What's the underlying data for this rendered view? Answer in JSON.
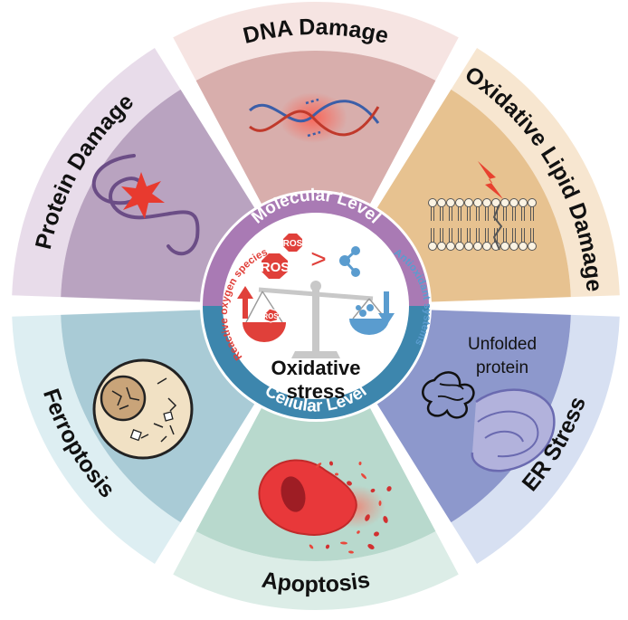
{
  "diagram": {
    "segments": [
      {
        "id": "dna-damage",
        "label": "DNA Damage",
        "colors": {
          "outer": "#f6e4e2",
          "inner": "#d8aeac"
        }
      },
      {
        "id": "oxidative-lipid-damage",
        "label": "Oxidative Lipid Damage",
        "colors": {
          "outer": "#f7e6d0",
          "inner": "#e7c290"
        }
      },
      {
        "id": "er-stress",
        "label": "ER Stress",
        "colors": {
          "outer": "#d7e0f2",
          "inner": "#8d98cc"
        }
      },
      {
        "id": "apoptosis",
        "label": "Apoptosis",
        "colors": {
          "outer": "#dcede7",
          "inner": "#b8d9cd"
        }
      },
      {
        "id": "ferroptosis",
        "label": "Ferroptosis",
        "colors": {
          "outer": "#ddeef2",
          "inner": "#a9cbd6"
        }
      },
      {
        "id": "protein-damage",
        "label": "Protein Damage",
        "colors": {
          "outer": "#e8dcea",
          "inner": "#b9a3c0"
        }
      }
    ],
    "center": {
      "molecular_level": "Molecular Level",
      "cellular_level": "Cellular Level",
      "reactive_oxygen_species": "Reactive oxygen species",
      "antioxidant_systems": "Antioxidant systems",
      "ros_label": "ROS",
      "comparison": ">",
      "title_line1": "Oxidative",
      "title_line2": "stress"
    },
    "er_stress_annotation": {
      "line1": "Unfolded",
      "line2": "protein"
    },
    "colors": {
      "molecular_ring": "#a97ab4",
      "cellular_ring": "#3d86ad",
      "ros_red": "#e0403a",
      "antioxidant_blue": "#5a9ccf",
      "balance_gray": "#c8c8c8"
    }
  }
}
